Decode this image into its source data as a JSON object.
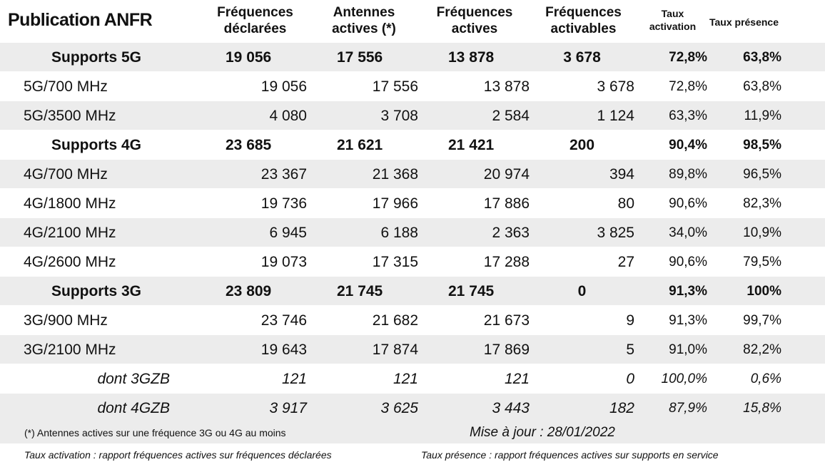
{
  "header": {
    "title": "Publication ANFR",
    "columns": [
      {
        "l1": "Fréquences",
        "l2": "déclarées"
      },
      {
        "l1": "Antennes",
        "l2": "actives (*)"
      },
      {
        "l1": "Fréquences",
        "l2": "actives"
      },
      {
        "l1": "Fréquences",
        "l2": "activables"
      },
      {
        "l1": "Taux",
        "l2": "activation"
      },
      {
        "l1": "Taux présence",
        "l2": ""
      }
    ]
  },
  "rows": [
    {
      "type": "summary",
      "shade": true,
      "label": "Supports 5G",
      "v": [
        "19 056",
        "17 556",
        "13 878",
        "3 678",
        "72,8%",
        "63,8%"
      ]
    },
    {
      "type": "detail",
      "shade": false,
      "label": "5G/700 MHz",
      "v": [
        "19 056",
        "17 556",
        "13 878",
        "3 678",
        "72,8%",
        "63,8%"
      ]
    },
    {
      "type": "detail",
      "shade": true,
      "label": "5G/3500 MHz",
      "v": [
        "4 080",
        "3 708",
        "2 584",
        "1 124",
        "63,3%",
        "11,9%"
      ]
    },
    {
      "type": "summary",
      "shade": false,
      "label": "Supports 4G",
      "v": [
        "23 685",
        "21 621",
        "21 421",
        "200",
        "90,4%",
        "98,5%"
      ]
    },
    {
      "type": "detail",
      "shade": true,
      "label": "4G/700 MHz",
      "v": [
        "23 367",
        "21 368",
        "20 974",
        "394",
        "89,8%",
        "96,5%"
      ]
    },
    {
      "type": "detail",
      "shade": false,
      "label": "4G/1800 MHz",
      "v": [
        "19 736",
        "17 966",
        "17 886",
        "80",
        "90,6%",
        "82,3%"
      ]
    },
    {
      "type": "detail",
      "shade": true,
      "label": "4G/2100 MHz",
      "v": [
        "6 945",
        "6 188",
        "2 363",
        "3 825",
        "34,0%",
        "10,9%"
      ]
    },
    {
      "type": "detail",
      "shade": false,
      "label": "4G/2600 MHz",
      "v": [
        "19 073",
        "17 315",
        "17 288",
        "27",
        "90,6%",
        "79,5%"
      ]
    },
    {
      "type": "summary",
      "shade": true,
      "label": "Supports 3G",
      "v": [
        "23 809",
        "21 745",
        "21 745",
        "0",
        "91,3%",
        "100%"
      ]
    },
    {
      "type": "detail",
      "shade": false,
      "label": "3G/900 MHz",
      "v": [
        "23 746",
        "21 682",
        "21 673",
        "9",
        "91,3%",
        "99,7%"
      ]
    },
    {
      "type": "detail",
      "shade": true,
      "label": "3G/2100 MHz",
      "v": [
        "19 643",
        "17 874",
        "17 869",
        "5",
        "91,0%",
        "82,2%"
      ]
    },
    {
      "type": "italic",
      "shade": false,
      "label": "dont 3GZB",
      "v": [
        "121",
        "121",
        "121",
        "0",
        "100,0%",
        "0,6%"
      ]
    },
    {
      "type": "italic",
      "shade": true,
      "label": "dont 4GZB",
      "v": [
        "3 917",
        "3 625",
        "3 443",
        "182",
        "87,9%",
        "15,8%"
      ]
    }
  ],
  "footer": {
    "note": "(*) Antennes actives sur une fréquence 3G ou 4G au moins",
    "update": "Mise à jour : 28/01/2022",
    "def_activation": "Taux activation : rapport fréquences actives sur fréquences déclarées",
    "def_presence": "Taux présence : rapport fréquences actives sur supports en service"
  }
}
